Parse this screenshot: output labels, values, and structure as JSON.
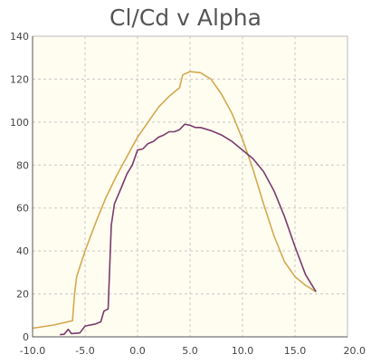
{
  "chart_data": {
    "type": "line",
    "title": "Cl/Cd v Alpha",
    "xlabel": "",
    "ylabel": "",
    "xlim": [
      -10,
      20
    ],
    "ylim": [
      0,
      140
    ],
    "x_ticks": [
      "-10.0",
      "-5.0",
      "0.0",
      "5.0",
      "10.0",
      "15.0",
      "20.0"
    ],
    "y_ticks": [
      "0",
      "20",
      "40",
      "60",
      "80",
      "100",
      "120",
      "140"
    ],
    "grid": true,
    "series": [
      {
        "color": "#D4A850",
        "points": [
          [
            -10,
            4
          ],
          [
            -8,
            5.5
          ],
          [
            -6.2,
            7.5
          ],
          [
            -6.0,
            20
          ],
          [
            -5.8,
            28
          ],
          [
            -5,
            40
          ],
          [
            -4,
            53
          ],
          [
            -3,
            65
          ],
          [
            -2,
            75
          ],
          [
            -1,
            84
          ],
          [
            0,
            93
          ],
          [
            1,
            100
          ],
          [
            2,
            107
          ],
          [
            3,
            112
          ],
          [
            4,
            116
          ],
          [
            4.3,
            122
          ],
          [
            5,
            123.5
          ],
          [
            6,
            123
          ],
          [
            7,
            120
          ],
          [
            8,
            113
          ],
          [
            9,
            104
          ],
          [
            10,
            92
          ],
          [
            11,
            78
          ],
          [
            12,
            62
          ],
          [
            13,
            47
          ],
          [
            14,
            35
          ],
          [
            15,
            28
          ],
          [
            16,
            24
          ],
          [
            17,
            21
          ]
        ]
      },
      {
        "color": "#7B3B6E",
        "points": [
          [
            -7.4,
            1
          ],
          [
            -7,
            1.2
          ],
          [
            -6.6,
            3.5
          ],
          [
            -6.3,
            1.5
          ],
          [
            -5.5,
            1.8
          ],
          [
            -5,
            5
          ],
          [
            -4,
            6
          ],
          [
            -3.5,
            7
          ],
          [
            -3.2,
            12
          ],
          [
            -2.8,
            13
          ],
          [
            -2.5,
            52
          ],
          [
            -2.2,
            62
          ],
          [
            -1.5,
            70
          ],
          [
            -1,
            76
          ],
          [
            -0.5,
            80
          ],
          [
            0,
            87
          ],
          [
            0.5,
            87.5
          ],
          [
            1,
            90
          ],
          [
            1.5,
            91
          ],
          [
            2,
            93
          ],
          [
            2.5,
            94
          ],
          [
            3,
            95.5
          ],
          [
            3.5,
            95.5
          ],
          [
            4,
            96.5
          ],
          [
            4.5,
            99
          ],
          [
            5,
            98.5
          ],
          [
            5.5,
            97.5
          ],
          [
            6,
            97.5
          ],
          [
            7,
            96
          ],
          [
            8,
            94
          ],
          [
            9,
            91
          ],
          [
            10,
            87
          ],
          [
            11,
            83
          ],
          [
            12,
            77
          ],
          [
            13,
            68
          ],
          [
            14,
            56
          ],
          [
            15,
            42
          ],
          [
            16,
            29
          ],
          [
            17,
            21
          ]
        ]
      }
    ]
  }
}
